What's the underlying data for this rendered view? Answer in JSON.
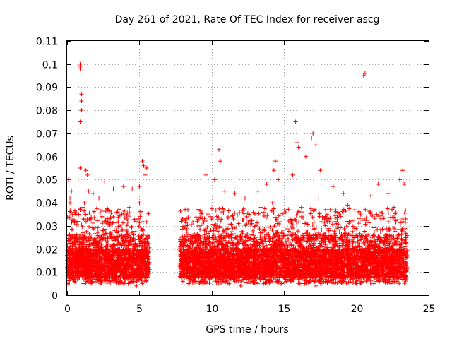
{
  "chart_data": {
    "type": "scatter",
    "title": "Day 261 of 2021, Rate Of TEC Index for receiver ascg",
    "xlabel": "GPS time / hours",
    "ylabel": "ROTI / TECUs",
    "xlim": [
      0,
      25
    ],
    "ylim": [
      0,
      0.11
    ],
    "grid": true,
    "marker": "+",
    "color": "#ff0000",
    "x_ticks": [
      0,
      5,
      10,
      15,
      20,
      25
    ],
    "x_tick_labels": [
      "0",
      "5",
      "10",
      "15",
      "20",
      "25"
    ],
    "y_ticks": [
      0,
      0.01,
      0.02,
      0.03,
      0.04,
      0.05,
      0.06,
      0.07,
      0.08,
      0.09,
      0.1,
      0.11
    ],
    "y_tick_labels": [
      "0",
      "0.01",
      "0.02",
      "0.03",
      "0.04",
      "0.05",
      "0.06",
      "0.07",
      "0.08",
      "0.09",
      "0.1",
      "0.11"
    ],
    "series": [
      {
        "name": "ROTI",
        "segments": [
          {
            "x_range": [
              0.0,
              5.7
            ],
            "y_range_dense": [
              0.005,
              0.03
            ]
          },
          {
            "x_range": [
              7.8,
              23.5
            ],
            "y_range_dense": [
              0.005,
              0.03
            ]
          }
        ],
        "x": [
          0.1,
          0.2,
          0.2,
          0.3,
          0.9,
          0.9,
          0.9,
          1.0,
          1.0,
          1.0,
          0.9,
          0.9,
          1.3,
          1.4,
          1.5,
          1.2,
          1.1,
          1.8,
          2.2,
          2.6,
          3.2,
          3.9,
          4.5,
          5.0,
          5.2,
          5.3,
          5.4,
          5.5,
          9.6,
          10.2,
          10.5,
          10.6,
          10.9,
          11.6,
          12.3,
          13.2,
          13.8,
          14.3,
          14.4,
          14.6,
          15.6,
          15.8,
          15.9,
          16.0,
          16.5,
          16.9,
          17.0,
          17.2,
          17.5,
          18.4,
          19.1,
          20.5,
          20.6,
          21.0,
          21.5,
          22.2,
          23.0,
          23.2,
          23.3,
          0.3,
          0.5,
          0.7,
          1.1,
          1.4,
          1.7,
          2.0,
          2.3,
          2.7,
          3.0,
          3.3,
          3.6,
          3.9,
          4.2,
          4.5,
          4.8,
          5.1,
          5.4,
          0.4,
          0.8,
          1.6,
          2.4,
          3.5,
          4.3,
          5.0,
          8.0,
          8.4,
          8.8,
          9.2,
          9.6,
          10.0,
          10.4,
          10.8,
          11.2,
          11.6,
          12.0,
          12.4,
          12.8,
          13.2,
          13.6,
          14.0,
          14.4,
          14.8,
          15.2,
          15.6,
          16.0,
          16.4,
          16.8,
          17.2,
          17.6,
          18.0,
          18.4,
          18.8,
          19.2,
          19.6,
          20.0,
          20.4,
          20.8,
          21.2,
          21.6,
          22.0,
          22.4,
          22.8,
          23.2,
          8.2,
          9.0,
          9.9,
          10.7,
          11.5,
          12.6,
          13.4,
          14.2,
          15.1,
          16.2,
          17.4,
          18.2,
          19.4,
          20.2,
          21.4,
          22.6,
          23.4
        ],
        "y": [
          0.05,
          0.042,
          0.04,
          0.045,
          0.1,
          0.099,
          0.098,
          0.087,
          0.084,
          0.08,
          0.075,
          0.055,
          0.054,
          0.052,
          0.045,
          0.04,
          0.038,
          0.044,
          0.042,
          0.049,
          0.046,
          0.047,
          0.046,
          0.047,
          0.058,
          0.056,
          0.052,
          0.055,
          0.052,
          0.05,
          0.063,
          0.058,
          0.045,
          0.044,
          0.042,
          0.045,
          0.048,
          0.054,
          0.058,
          0.05,
          0.052,
          0.075,
          0.066,
          0.064,
          0.06,
          0.068,
          0.07,
          0.065,
          0.054,
          0.047,
          0.044,
          0.095,
          0.096,
          0.043,
          0.048,
          0.044,
          0.05,
          0.054,
          0.048,
          0.008,
          0.006,
          0.007,
          0.005,
          0.008,
          0.006,
          0.007,
          0.005,
          0.009,
          0.006,
          0.007,
          0.008,
          0.005,
          0.007,
          0.006,
          0.004,
          0.007,
          0.006,
          0.032,
          0.035,
          0.033,
          0.034,
          0.036,
          0.038,
          0.04,
          0.006,
          0.005,
          0.007,
          0.006,
          0.005,
          0.008,
          0.006,
          0.007,
          0.005,
          0.006,
          0.004,
          0.007,
          0.006,
          0.005,
          0.008,
          0.006,
          0.007,
          0.005,
          0.006,
          0.008,
          0.007,
          0.005,
          0.006,
          0.004,
          0.007,
          0.006,
          0.005,
          0.008,
          0.006,
          0.007,
          0.005,
          0.006,
          0.007,
          0.005,
          0.006,
          0.007,
          0.005,
          0.006,
          0.007,
          0.03,
          0.032,
          0.034,
          0.036,
          0.033,
          0.035,
          0.038,
          0.04,
          0.036,
          0.038,
          0.042,
          0.037,
          0.039,
          0.036,
          0.035,
          0.038,
          0.033
        ]
      }
    ]
  }
}
